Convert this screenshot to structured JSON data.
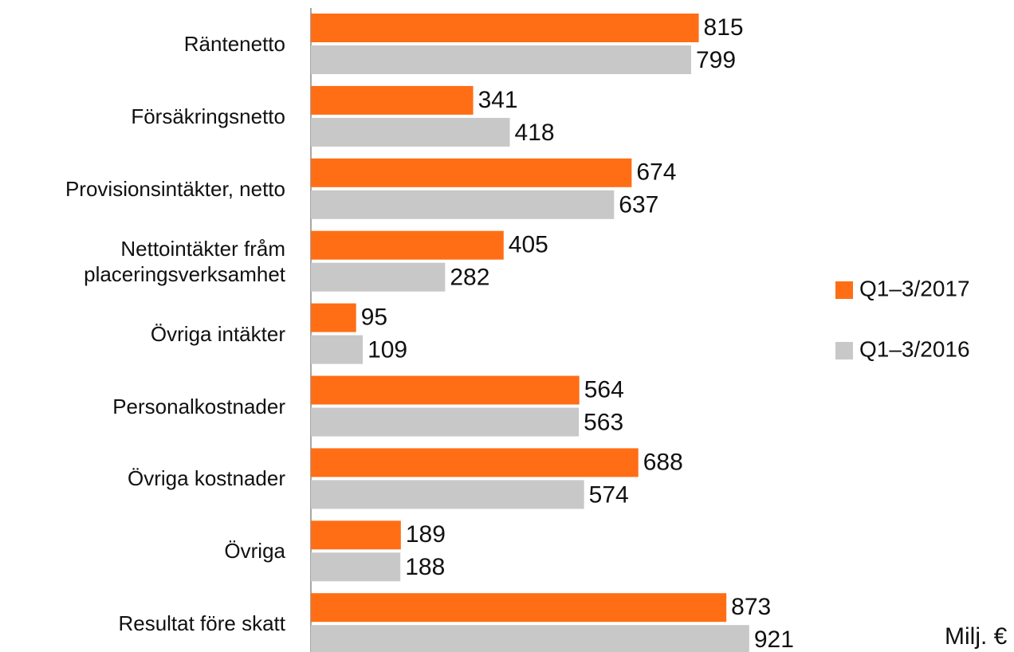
{
  "chart_data": {
    "type": "hbar",
    "categories": [
      "Räntenetto",
      "Försäkringsnetto",
      "Provisionsintäkter, netto",
      "Nettointäkter fråm\nplaceringsverksamhet",
      "Övriga intäkter",
      "Personalkostnader",
      "Övriga kostnader",
      "Övriga",
      "Resultat före skatt"
    ],
    "series": [
      {
        "name": "Q1–3/2017",
        "color": "#ff6e14",
        "values": [
          815,
          341,
          674,
          405,
          95,
          564,
          688,
          189,
          873
        ]
      },
      {
        "name": "Q1–3/2016",
        "color": "#c8c8c8",
        "values": [
          799,
          418,
          637,
          282,
          109,
          563,
          574,
          188,
          921
        ]
      }
    ],
    "unit_note": "Milj. €"
  }
}
